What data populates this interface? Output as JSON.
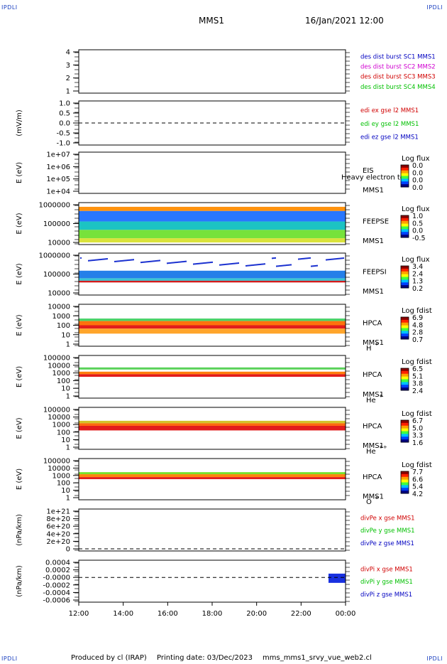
{
  "corners": {
    "tl": "IPDLI",
    "tr": "IPDLI",
    "bl": "IPDLI",
    "br": "IPDLI"
  },
  "header": {
    "title": "MMS1",
    "datetime": "16/Jan/2021 12:00"
  },
  "footer": {
    "produced": "Produced by cl (IRAP)",
    "printing": "Printing date: 03/Dec/2023",
    "script": "mms_mms1_srvy_vue_web2.cl"
  },
  "chart_data": {
    "type": "heatmap",
    "x_axis": {
      "ticks": [
        "12:00",
        "14:00",
        "16:00",
        "18:00",
        "20:00",
        "22:00",
        "00:00"
      ],
      "range": [
        "12:00",
        "00:00"
      ]
    },
    "panels": [
      {
        "type": "table",
        "ylabel": "",
        "yticks": [
          "4",
          "3",
          "2",
          "1"
        ],
        "legend": [
          {
            "text": "des dist burst SC1 MMS1",
            "color": "#0000c0"
          },
          {
            "text": "des dist burst SC2 MMS2",
            "color": "#d000d0"
          },
          {
            "text": "des dist burst SC3 MMS3",
            "color": "#d00000"
          },
          {
            "text": "des dist burst SC4 MMS4",
            "color": "#00c000"
          }
        ]
      },
      {
        "type": "line",
        "ylabel": "(mV/m)",
        "yticks": [
          "1.0",
          "0.5",
          "0.0",
          "-0.5",
          "-1.0"
        ],
        "zero_line": true,
        "legend": [
          {
            "text": "edi ex gse l2 MMS1",
            "color": "#d00000"
          },
          {
            "text": "edi ey gse l2 MMS1",
            "color": "#00c000"
          },
          {
            "text": "edi ez gse l2 MMS1",
            "color": "#0000c0"
          }
        ]
      },
      {
        "type": "heatmap",
        "ylabel": "E (eV)",
        "yticks": [
          "1e+07",
          "1e+06",
          "1e+05",
          "1e+04"
        ],
        "log": true,
        "labels": [
          "EIS",
          "MMS1"
        ],
        "overlay": "Heavy electron to",
        "cbar_title": "Log flux",
        "cbar_ticks": [
          "0.0",
          "0.0",
          "0.0",
          "0.0"
        ]
      },
      {
        "type": "heatmap",
        "ylabel": "E (eV)",
        "yticks": [
          "1000000",
          "100000",
          "10000"
        ],
        "log": true,
        "labels": [
          "FEEPSE",
          "MMS1"
        ],
        "cbar_title": "Log flux",
        "cbar_ticks": [
          "1.0",
          "0.5",
          "0.0",
          "-0.5"
        ]
      },
      {
        "type": "heatmap",
        "ylabel": "E (eV)",
        "yticks": [
          "1000000",
          "100000",
          "10000"
        ],
        "log": true,
        "labels": [
          "FEEPSI",
          "MMS1"
        ],
        "cbar_title": "Log flux",
        "cbar_ticks": [
          "3.4",
          "2.4",
          "1.3",
          "0.2"
        ]
      },
      {
        "type": "heatmap",
        "ylabel": "E (eV)",
        "yticks": [
          "10000",
          "1000",
          "100",
          "10",
          "1"
        ],
        "log": true,
        "labels": [
          "HPCA",
          "MMS1"
        ],
        "species": "H",
        "species_sup": "+",
        "cbar_title": "Log fdist",
        "cbar_ticks": [
          "6.9",
          "4.8",
          "2.8",
          "0.7"
        ]
      },
      {
        "type": "heatmap",
        "ylabel": "E (eV)",
        "yticks": [
          "100000",
          "10000",
          "1000",
          "100",
          "10",
          "1"
        ],
        "log": true,
        "labels": [
          "HPCA",
          "MMS1"
        ],
        "species": "He",
        "species_sup": "+",
        "cbar_title": "Log fdist",
        "cbar_ticks": [
          "6.5",
          "5.1",
          "3.8",
          "2.4"
        ]
      },
      {
        "type": "heatmap",
        "ylabel": "E (eV)",
        "yticks": [
          "100000",
          "10000",
          "1000",
          "100",
          "10",
          "1"
        ],
        "log": true,
        "labels": [
          "HPCA",
          "MMS1"
        ],
        "species": "He",
        "species_sup": "++",
        "cbar_title": "Log fdist",
        "cbar_ticks": [
          "6.7",
          "5.0",
          "3.3",
          "1.6"
        ]
      },
      {
        "type": "heatmap",
        "ylabel": "E (eV)",
        "yticks": [
          "100000",
          "10000",
          "1000",
          "100",
          "10",
          "1"
        ],
        "log": true,
        "labels": [
          "HPCA",
          "MMS1"
        ],
        "species": "O",
        "species_sup": "+",
        "cbar_title": "Log fdist",
        "cbar_ticks": [
          "7.7",
          "6.6",
          "5.4",
          "4.2"
        ]
      },
      {
        "type": "line",
        "ylabel": "(nPa/km)",
        "yticks": [
          "1e+21",
          "8e+20",
          "6e+20",
          "4e+20",
          "2e+20",
          "0"
        ],
        "zero_line": true,
        "legend": [
          {
            "text": "divPe x gse MMS1",
            "color": "#d00000"
          },
          {
            "text": "divPe y gse MMS1",
            "color": "#00c000"
          },
          {
            "text": "divPe z gse MMS1",
            "color": "#0000c0"
          }
        ]
      },
      {
        "type": "line",
        "ylabel": "(nPa/km)",
        "yticks": [
          "0.0004",
          "0.0002",
          "-0.0000",
          "-0.0002",
          "-0.0004",
          "-0.0006"
        ],
        "zero_line": true,
        "legend": [
          {
            "text": "divPi x gse MMS1",
            "color": "#d00000"
          },
          {
            "text": "divPi y gse MMS1",
            "color": "#00c000"
          },
          {
            "text": "divPi z gse MMS1",
            "color": "#0000c0"
          }
        ]
      }
    ]
  }
}
